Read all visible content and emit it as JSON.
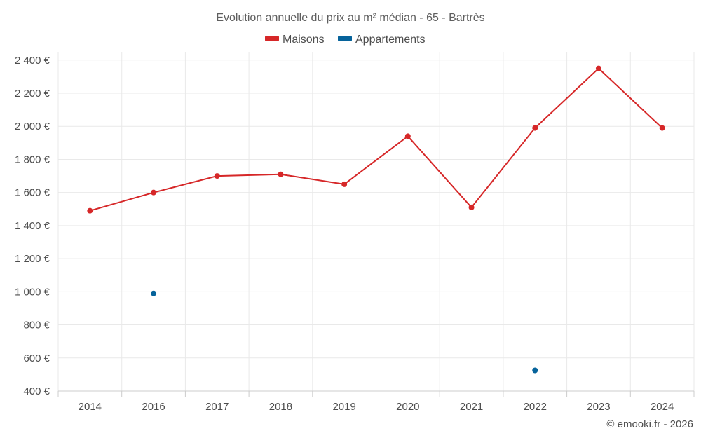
{
  "chart_data": {
    "type": "line",
    "title": "Evolution annuelle du prix au m² médian - 65 - Bartrès",
    "categories": [
      "2014",
      "2016",
      "2017",
      "2018",
      "2019",
      "2020",
      "2021",
      "2022",
      "2023",
      "2024"
    ],
    "ylim": [
      400,
      2450
    ],
    "yticks": [
      400,
      600,
      800,
      1000,
      1200,
      1400,
      1600,
      1800,
      2000,
      2200,
      2400
    ],
    "ytick_labels": [
      "400 €",
      "600 €",
      "800 €",
      "1 000 €",
      "1 200 €",
      "1 400 €",
      "1 600 €",
      "1 800 €",
      "2 000 €",
      "2 200 €",
      "2 400 €"
    ],
    "grid": true,
    "legend_position": "top-center",
    "series": [
      {
        "name": "Maisons",
        "color": "#d62728",
        "line": true,
        "values": [
          1490,
          1600,
          1700,
          1710,
          1650,
          1940,
          1510,
          1990,
          2350,
          1990
        ]
      },
      {
        "name": "Appartements",
        "color": "#06639b",
        "line": false,
        "values": [
          null,
          990,
          null,
          null,
          null,
          null,
          null,
          525,
          null,
          null
        ]
      }
    ],
    "credit": "© emooki.fr - 2026"
  }
}
